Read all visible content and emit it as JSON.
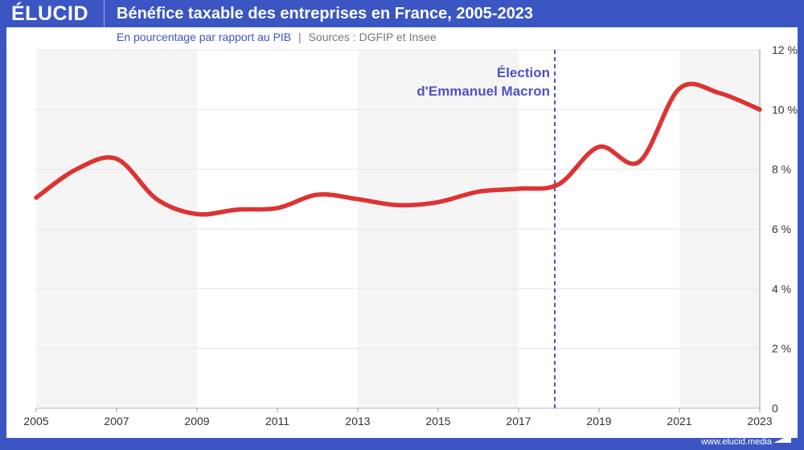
{
  "header": {
    "logo": "ÉLUCID",
    "title": "Bénéfice taxable des entreprises en France, 2005-2023"
  },
  "subtitle": {
    "text": "En pourcentage par rapport au PIB",
    "separator": "|",
    "sources": "Sources : DGFIP et Insee"
  },
  "footer": {
    "url": "www.elucid.media"
  },
  "colors": {
    "frame": "#3b56c3",
    "line": "#dd3333",
    "annotation": "#4f52c4",
    "band": "#f5f5f5"
  },
  "chart_data": {
    "type": "line",
    "title": "Bénéfice taxable des entreprises en France, 2005-2023",
    "ylabel": "En pourcentage par rapport au PIB",
    "xlim": [
      2005,
      2023
    ],
    "ylim": [
      0,
      12
    ],
    "y_axis_side": "right",
    "grid": true,
    "x_ticks": [
      "2005",
      "2007",
      "2009",
      "2011",
      "2013",
      "2015",
      "2017",
      "2019",
      "2021",
      "2023"
    ],
    "y_ticks": [
      "0",
      "2 %",
      "4 %",
      "6 %",
      "8 %",
      "10 %",
      "12 %"
    ],
    "x": [
      2005,
      2006,
      2007,
      2008,
      2009,
      2010,
      2011,
      2012,
      2013,
      2014,
      2015,
      2016,
      2017,
      2018,
      2019,
      2020,
      2021,
      2022,
      2023
    ],
    "values": [
      7.05,
      8.0,
      8.35,
      7.0,
      6.5,
      6.65,
      6.7,
      7.15,
      7.0,
      6.8,
      6.9,
      7.25,
      7.35,
      7.5,
      8.75,
      8.25,
      10.7,
      10.55,
      10.0
    ],
    "shaded_bands": [
      [
        2005,
        2009
      ],
      [
        2013,
        2017
      ],
      [
        2021,
        2023
      ]
    ],
    "annotation": {
      "x": 2017.9,
      "line1": "Élection",
      "line2": "d'Emmanuel Macron"
    }
  }
}
